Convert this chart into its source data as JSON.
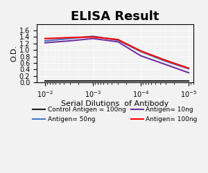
{
  "title": "ELISA Result",
  "xlabel": "Serial Dilutions  of Antibody",
  "ylabel": "O.D.",
  "x_values": [
    0.01,
    0.003,
    0.001,
    0.0003,
    0.0001,
    3e-05,
    1e-05
  ],
  "control_antigen": [
    0.05,
    0.05,
    0.05,
    0.05,
    0.05,
    0.05,
    0.05
  ],
  "antigen_10ng": [
    1.22,
    1.28,
    1.35,
    1.25,
    0.82,
    0.55,
    0.3
  ],
  "antigen_50ng": [
    1.28,
    1.35,
    1.42,
    1.3,
    0.95,
    0.65,
    0.42
  ],
  "antigen_100ng": [
    1.35,
    1.38,
    1.4,
    1.32,
    0.97,
    0.68,
    0.44
  ],
  "colors": {
    "control": "#1a1a1a",
    "antigen_10ng": "#7030a0",
    "antigen_50ng": "#4472c4",
    "antigen_100ng": "#ff0000"
  },
  "legend_labels": {
    "control": "Control Antigen = 100ng",
    "antigen_10ng": "Antigen= 10ng",
    "antigen_50ng": "Antigen= 50ng",
    "antigen_100ng": "Antigen= 100ng"
  },
  "ylim": [
    0,
    1.8
  ],
  "yticks": [
    0,
    0.2,
    0.4,
    0.6,
    0.8,
    1.0,
    1.2,
    1.4,
    1.6
  ],
  "background_color": "#f2f2f2",
  "title_fontsize": 13,
  "axis_label_fontsize": 8,
  "legend_fontsize": 6.5,
  "tick_fontsize": 7,
  "linewidth": 1.5
}
